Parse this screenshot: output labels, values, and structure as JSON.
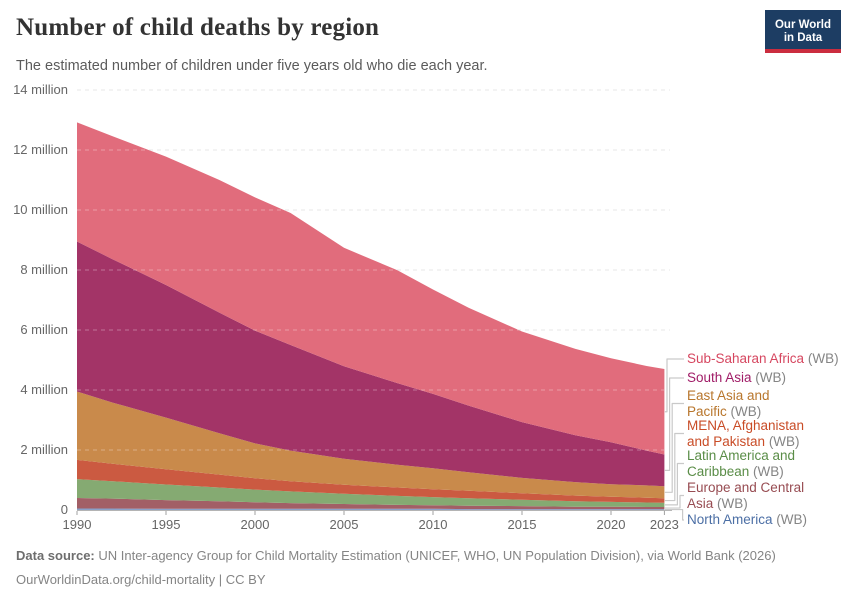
{
  "header": {
    "title": "Number of child deaths by region",
    "subtitle": "The estimated number of children under five years old who die each year."
  },
  "logo": {
    "line1": "Our World",
    "line2": "in Data",
    "bg_color": "#1d3d63",
    "accent_color": "#cb2d3f"
  },
  "chart_data": {
    "type": "area",
    "stacked": true,
    "title": "Number of child deaths by region",
    "xlabel": "",
    "ylabel": "",
    "unit": "children under five deaths per year",
    "grid": true,
    "legend_position": "right",
    "ylim": [
      0,
      14
    ],
    "x": [
      1990,
      1992,
      1995,
      1998,
      2000,
      2002,
      2005,
      2008,
      2010,
      2012,
      2015,
      2018,
      2020,
      2022,
      2023
    ],
    "values_unit": "millions of deaths",
    "series": [
      {
        "name": "North America",
        "legend_suffix": " (WB)",
        "color": "#8aa0c8",
        "text_color": "#4c6fa5",
        "values": [
          0.05,
          0.05,
          0.04,
          0.04,
          0.04,
          0.04,
          0.04,
          0.04,
          0.04,
          0.03,
          0.03,
          0.03,
          0.03,
          0.03,
          0.03
        ]
      },
      {
        "name": "Europe and Central Asia",
        "legend_suffix": " (WB)",
        "color": "#a25f66",
        "text_color": "#974c52",
        "values": [
          0.35,
          0.33,
          0.29,
          0.25,
          0.22,
          0.19,
          0.16,
          0.13,
          0.12,
          0.11,
          0.1,
          0.08,
          0.08,
          0.07,
          0.07
        ]
      },
      {
        "name": "Latin America and Caribbean",
        "legend_suffix": " (WB)",
        "color": "#85aa72",
        "text_color": "#5a8d47",
        "values": [
          0.63,
          0.58,
          0.52,
          0.46,
          0.42,
          0.39,
          0.34,
          0.3,
          0.27,
          0.25,
          0.21,
          0.18,
          0.16,
          0.15,
          0.14
        ]
      },
      {
        "name": "MENA, Afghanistan and Pakistan",
        "legend_suffix": " (WB)",
        "color": "#cb5a41",
        "text_color": "#c94c27",
        "values": [
          0.64,
          0.58,
          0.51,
          0.43,
          0.38,
          0.34,
          0.3,
          0.28,
          0.26,
          0.25,
          0.22,
          0.19,
          0.17,
          0.16,
          0.15
        ]
      },
      {
        "name": "East Asia and Pacific",
        "legend_suffix": " (WB)",
        "color": "#c98a4b",
        "text_color": "#b8762c",
        "values": [
          2.28,
          2.04,
          1.72,
          1.38,
          1.16,
          1.02,
          0.87,
          0.76,
          0.7,
          0.62,
          0.51,
          0.45,
          0.42,
          0.41,
          0.4
        ]
      },
      {
        "name": "South Asia",
        "legend_suffix": " (WB)",
        "color": "#a33467",
        "text_color": "#a01c67",
        "values": [
          5.0,
          4.78,
          4.42,
          4.02,
          3.76,
          3.52,
          3.08,
          2.72,
          2.48,
          2.22,
          1.86,
          1.56,
          1.4,
          1.16,
          1.06
        ]
      },
      {
        "name": "Sub-Saharan Africa",
        "legend_suffix": " (WB)",
        "color": "#e16c7c",
        "text_color": "#d64760",
        "values": [
          3.97,
          4.1,
          4.28,
          4.42,
          4.44,
          4.4,
          3.95,
          3.76,
          3.48,
          3.26,
          3.02,
          2.88,
          2.8,
          2.82,
          2.85
        ]
      }
    ],
    "y_ticks": [
      {
        "label": "0",
        "value": 0
      },
      {
        "label": "2 million",
        "value": 2
      },
      {
        "label": "4 million",
        "value": 4
      },
      {
        "label": "6 million",
        "value": 6
      },
      {
        "label": "8 million",
        "value": 8
      },
      {
        "label": "10 million",
        "value": 10
      },
      {
        "label": "12 million",
        "value": 12
      },
      {
        "label": "14 million",
        "value": 14
      }
    ],
    "x_ticks": [
      {
        "label": "1990",
        "year": 1990
      },
      {
        "label": "1995",
        "year": 1995
      },
      {
        "label": "2000",
        "year": 2000
      },
      {
        "label": "2005",
        "year": 2005
      },
      {
        "label": "2010",
        "year": 2010
      },
      {
        "label": "2015",
        "year": 2015
      },
      {
        "label": "2020",
        "year": 2020
      },
      {
        "label": "2023",
        "year": 2023
      }
    ]
  },
  "footer": {
    "source_label": "Data source:",
    "source_text": " UN Inter-agency Group for Child Mortality Estimation (UNICEF, WHO, UN Population Division), via World Bank (2026)",
    "link_text": "OurWorldinData.org/child-mortality",
    "license": " | CC BY"
  }
}
